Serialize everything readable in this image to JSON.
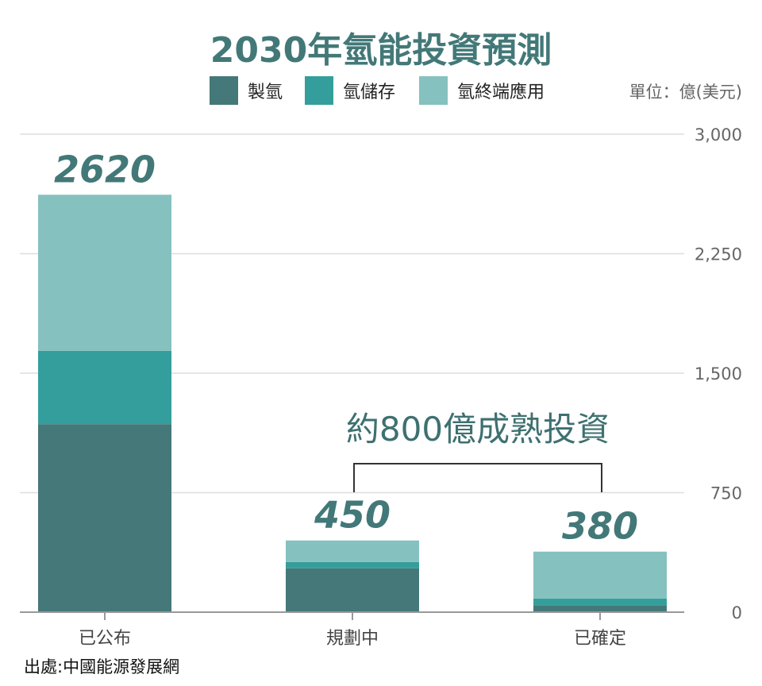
{
  "chart_data": {
    "type": "bar",
    "stacked": true,
    "title": "2030年氫能投資預測",
    "unit": "單位：億(美元)",
    "categories": [
      "已公布",
      "規劃中",
      "已確定"
    ],
    "series": [
      {
        "name": "製氫",
        "color": "#457878",
        "values": [
          1180,
          275,
          40
        ]
      },
      {
        "name": "氫儲存",
        "color": "#349e9c",
        "values": [
          460,
          40,
          45
        ]
      },
      {
        "name": "氫終端應用",
        "color": "#85c1bf",
        "values": [
          980,
          135,
          295
        ]
      }
    ],
    "totals": [
      "2620",
      "450",
      "380"
    ],
    "ylim": [
      0,
      3000
    ],
    "yticks": [
      0,
      750,
      1500,
      2250,
      3000
    ],
    "ytick_labels": [
      "0",
      "750",
      "1,500",
      "2,250",
      "3,000"
    ],
    "grid": true,
    "legend": "top",
    "annotation": {
      "text": "約800億成熟投資",
      "spans": [
        "規劃中",
        "已確定"
      ]
    }
  },
  "source": "出處:中國能源發展網"
}
